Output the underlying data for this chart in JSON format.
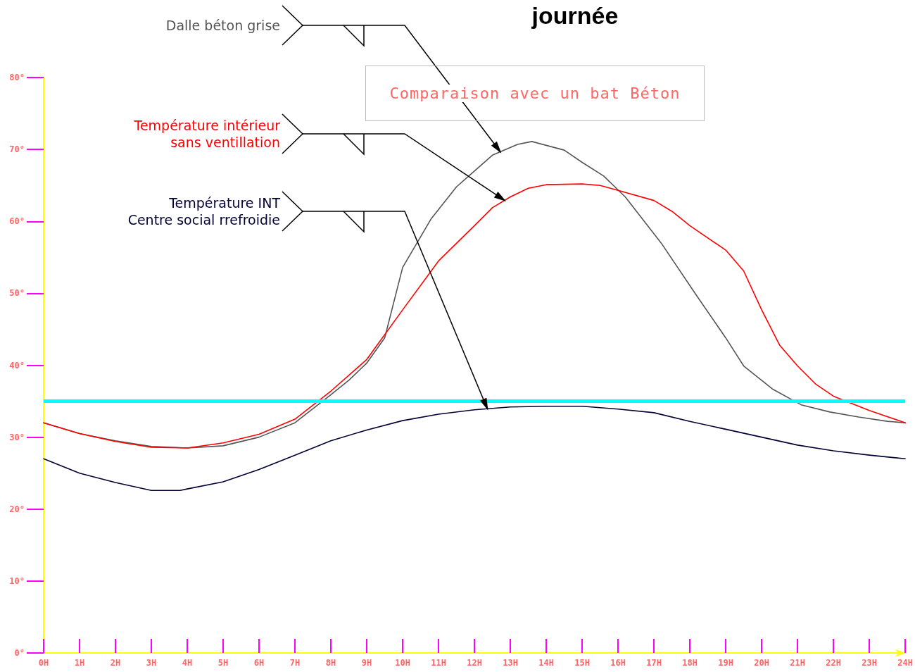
{
  "chart_data": {
    "type": "line",
    "title": "journée",
    "annotations": [
      "Comparaison avec un bat Béton"
    ],
    "xlim": [
      0,
      24
    ],
    "xticks": [
      {
        "value": 0,
        "label": "0H"
      },
      {
        "value": 1,
        "label": "1H"
      },
      {
        "value": 2,
        "label": "2H"
      },
      {
        "value": 3,
        "label": "3H"
      },
      {
        "value": 4,
        "label": "4H"
      },
      {
        "value": 5,
        "label": "5H"
      },
      {
        "value": 6,
        "label": "6H"
      },
      {
        "value": 7,
        "label": "7H"
      },
      {
        "value": 8,
        "label": "8H"
      },
      {
        "value": 9,
        "label": "9H"
      },
      {
        "value": 10,
        "label": "10H"
      },
      {
        "value": 11,
        "label": "11H"
      },
      {
        "value": 12,
        "label": "12H"
      },
      {
        "value": 13,
        "label": "13H"
      },
      {
        "value": 14,
        "label": "14H"
      },
      {
        "value": 15,
        "label": "15H"
      },
      {
        "value": 16,
        "label": "16H"
      },
      {
        "value": 17,
        "label": "17H"
      },
      {
        "value": 18,
        "label": "18H"
      },
      {
        "value": 19,
        "label": "19H"
      },
      {
        "value": 20,
        "label": "20H"
      },
      {
        "value": 21,
        "label": "21H"
      },
      {
        "value": 22,
        "label": "22H"
      },
      {
        "value": 23,
        "label": "23H"
      },
      {
        "value": 24,
        "label": "24H"
      }
    ],
    "ylim": [
      0,
      80
    ],
    "yticks": [
      {
        "value": 0,
        "label": "0°"
      },
      {
        "value": 10,
        "label": "10°"
      },
      {
        "value": 20,
        "label": "20°"
      },
      {
        "value": 30,
        "label": "30°"
      },
      {
        "value": 40,
        "label": "40°"
      },
      {
        "value": 50,
        "label": "50°"
      },
      {
        "value": 60,
        "label": "60°"
      },
      {
        "value": 70,
        "label": "70°"
      },
      {
        "value": 80,
        "label": "80°"
      }
    ],
    "grid": false,
    "legend": false,
    "marker": "none",
    "line_style": "solid",
    "ref_lines": [
      {
        "axis": "y",
        "value": 35,
        "color": "#00ffff"
      }
    ],
    "series": [
      {
        "name": "Dalle béton grise",
        "color": "#555555",
        "x": [
          0,
          1,
          2,
          3,
          4,
          5,
          6,
          7,
          8,
          8.5,
          9,
          9.5,
          10,
          10.8,
          11.5,
          12.5,
          13.2,
          13.6,
          14.5,
          15,
          15.6,
          16.2,
          17.2,
          18.2,
          19,
          19.5,
          20.3,
          21.1,
          21.9,
          22.7,
          23.5,
          24
        ],
        "values": [
          32,
          30.5,
          29.5,
          28.7,
          28.5,
          28.8,
          30,
          32,
          35.9,
          37.9,
          40.3,
          43.8,
          53.6,
          60.4,
          64.8,
          69.2,
          70.7,
          71.1,
          69.9,
          68.2,
          66.3,
          63.4,
          57,
          49.6,
          43.8,
          39.9,
          36.7,
          34.5,
          33.5,
          32.8,
          32.2,
          32
        ]
      },
      {
        "name": "Température intérieur sans ventillation",
        "color": "#ff0000",
        "x": [
          0,
          1,
          2,
          3,
          4,
          5,
          6,
          7,
          8,
          9,
          10,
          11,
          12,
          12.5,
          13,
          13.5,
          14,
          15,
          15.5,
          16,
          17,
          17.5,
          18,
          19,
          19.5,
          20,
          20.5,
          21,
          21.5,
          22,
          23,
          24
        ],
        "values": [
          32,
          30.5,
          29.4,
          28.6,
          28.5,
          29.2,
          30.4,
          32.5,
          36.4,
          40.8,
          47.7,
          54.5,
          59.4,
          61.9,
          63.4,
          64.6,
          65.1,
          65.2,
          65,
          64.3,
          62.9,
          61.4,
          59.4,
          56,
          53.1,
          47.7,
          42.8,
          39.9,
          37.4,
          35.7,
          33.7,
          32
        ]
      },
      {
        "name": "Température INT Centre social rrefroidie",
        "color": "#000033",
        "x": [
          0,
          1,
          2,
          3,
          3.8,
          4,
          5,
          6,
          7,
          8,
          9,
          10,
          11,
          12,
          13,
          14,
          15,
          16,
          17,
          18,
          19,
          20,
          21,
          22,
          23,
          24
        ],
        "values": [
          27,
          25,
          23.7,
          22.6,
          22.6,
          22.8,
          23.8,
          25.5,
          27.5,
          29.5,
          31,
          32.3,
          33.2,
          33.8,
          34.2,
          34.3,
          34.3,
          33.9,
          33.4,
          32.2,
          31.1,
          30,
          28.9,
          28.1,
          27.5,
          27
        ]
      }
    ]
  }
}
